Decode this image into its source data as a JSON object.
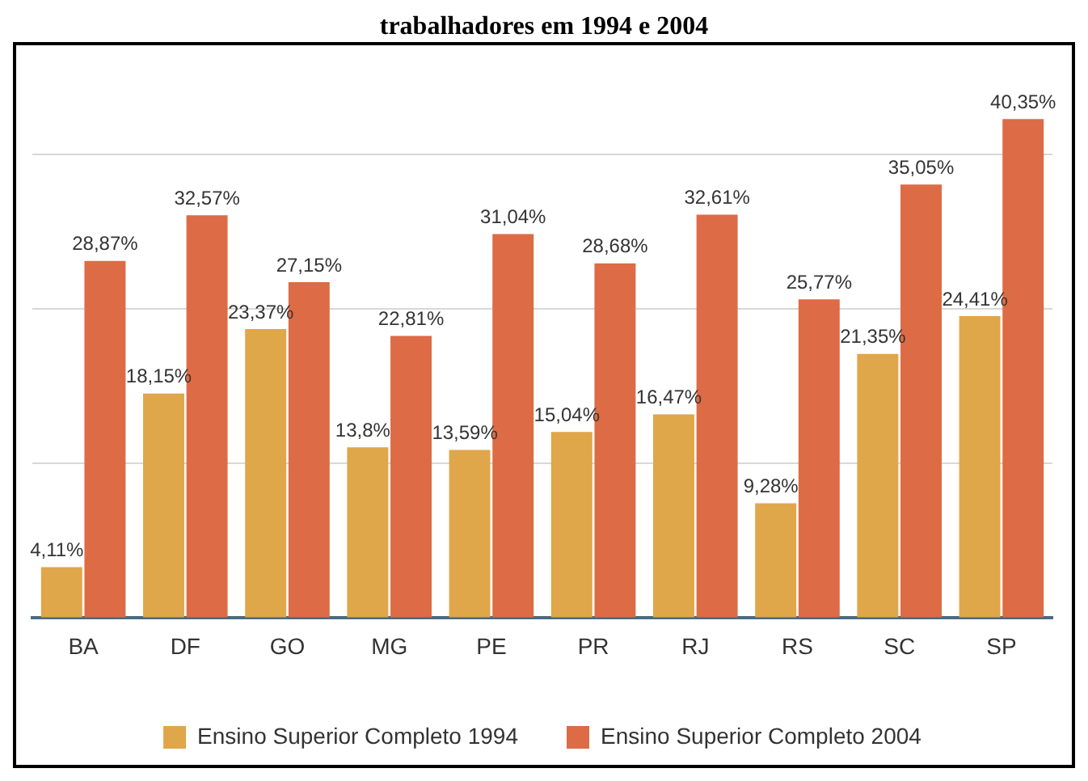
{
  "chart_data": {
    "type": "bar",
    "title": "trabalhadores em 1994 e 2004",
    "categories": [
      "BA",
      "DF",
      "GO",
      "MG",
      "PE",
      "PR",
      "RJ",
      "RS",
      "SC",
      "SP"
    ],
    "series": [
      {
        "name": "Ensino Superior Completo 1994",
        "color": "#e0a64a",
        "values": [
          4.11,
          18.15,
          23.37,
          13.8,
          13.59,
          15.04,
          16.47,
          9.28,
          21.35,
          24.41
        ],
        "value_labels": [
          "4,11%",
          "18,15%",
          "23,37%",
          "13,8%",
          "13,59%",
          "15,04%",
          "16,47%",
          "9,28%",
          "21,35%",
          "24,41%"
        ]
      },
      {
        "name": "Ensino Superior Completo 2004",
        "color": "#dd6b45",
        "values": [
          28.87,
          32.57,
          27.15,
          22.81,
          31.04,
          28.68,
          32.61,
          25.77,
          35.05,
          40.35
        ],
        "value_labels": [
          "28,87%",
          "32,57%",
          "27,15%",
          "22,81%",
          "31,04%",
          "28,68%",
          "32,61%",
          "25,77%",
          "35,05%",
          "40,35%"
        ]
      }
    ],
    "yticks": [
      {
        "value": 0,
        "label": null
      },
      {
        "value": 12.5,
        "label": null
      },
      {
        "value": 25,
        "label": null
      },
      {
        "value": 37.5,
        "label": null
      }
    ],
    "grid": "y",
    "legend": "bottom",
    "tick_labels": "x"
  }
}
